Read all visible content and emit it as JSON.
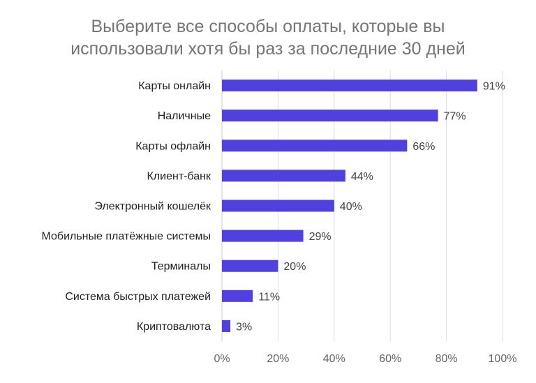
{
  "chart_data": {
    "type": "bar",
    "orientation": "horizontal",
    "title_lines": [
      "Выберите все способы оплаты, которые вы",
      "использовали хотя бы раз за последние 30 дней"
    ],
    "categories": [
      "Карты онлайн",
      "Наличные",
      "Карты офлайн",
      "Клиент-банк",
      "Электронный кошелёк",
      "Мобильные платёжные системы",
      "Терминалы",
      "Система быстрых платежей",
      "Криптовалюта"
    ],
    "values": [
      91,
      77,
      66,
      44,
      40,
      29,
      20,
      11,
      3
    ],
    "value_labels": [
      "91%",
      "77%",
      "66%",
      "44%",
      "40%",
      "29%",
      "20%",
      "11%",
      "3%"
    ],
    "xlim": [
      0,
      100
    ],
    "x_ticks": [
      "0%",
      "20%",
      "40%",
      "60%",
      "80%",
      "100%"
    ],
    "grid": true,
    "legend": "none",
    "bar_color": "#5040e0",
    "grid_color": "#dddddd"
  }
}
